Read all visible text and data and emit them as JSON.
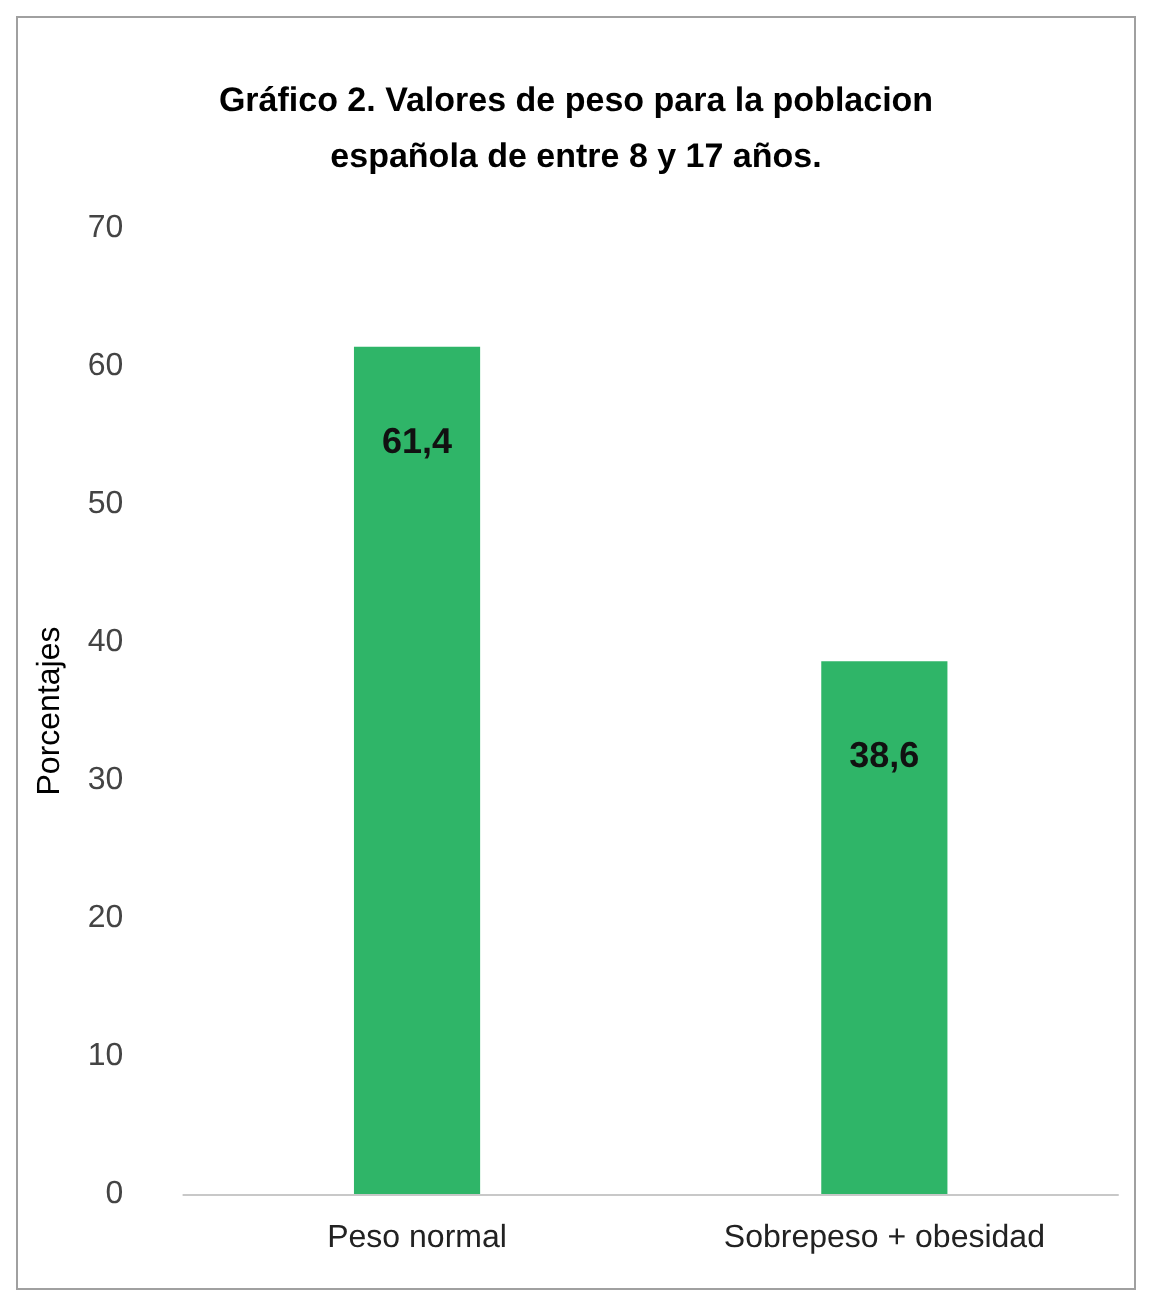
{
  "chart_data": {
    "type": "bar",
    "title": "Gráfico 2. Valores de peso para la poblacion\nespañola de entre 8 y 17 años.",
    "ylabel": "Porcentajes",
    "categories": [
      "Peso normal",
      "Sobrepeso + obesidad"
    ],
    "values": [
      61.4,
      38.6
    ],
    "value_labels": [
      "61,4",
      "38,6"
    ],
    "color": "#2fb568",
    "ylim": [
      0,
      70
    ],
    "yticks": [
      0,
      10,
      20,
      30,
      40,
      50,
      60,
      70
    ],
    "grid": false
  }
}
